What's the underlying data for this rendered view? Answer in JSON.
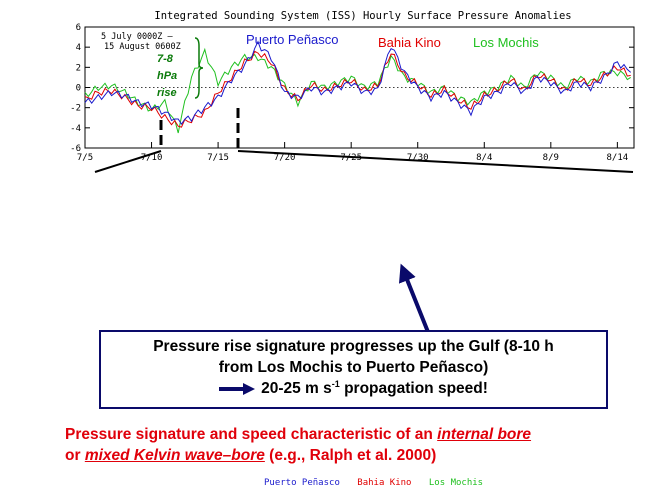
{
  "chart_data": {
    "type": "line",
    "title": "Integrated Sounding System (ISS) Hourly Surface Pressure Anomalies",
    "annotation": "5 July 0000Z – 15 August 0600Z",
    "rise_label_lines": [
      "7-8",
      "hPa",
      "rise"
    ],
    "xlabel": "",
    "ylabel": "",
    "x_ticks": [
      "7/5",
      "7/10",
      "7/15",
      "7/20",
      "7/25",
      "7/30",
      "8/4",
      "8/9",
      "8/14"
    ],
    "y_ticks": [
      "6",
      "4",
      "2",
      "0",
      "-2",
      "-4",
      "-6"
    ],
    "xlim": [
      0,
      41.25
    ],
    "ylim": [
      -6,
      6
    ],
    "grid": false,
    "legend_position": "top",
    "series": [
      {
        "name": "Puerto Peñasco",
        "color": "#1a1acc",
        "x": [
          0,
          1,
          2,
          3,
          4,
          5,
          6,
          7,
          8,
          9,
          10,
          11,
          12,
          13,
          14,
          15,
          16,
          17,
          18,
          19,
          20,
          21,
          22,
          23,
          24,
          25,
          26,
          27,
          28,
          29,
          30,
          31,
          32,
          33,
          34,
          35,
          36,
          37,
          38,
          39,
          40,
          41
        ],
        "values": [
          -1.5,
          -1,
          -0.5,
          -0.8,
          -1.5,
          -1.8,
          -2.5,
          -3.4,
          -3,
          -2,
          -1,
          0.8,
          2.2,
          4.3,
          3,
          -0.5,
          -1,
          0,
          -0.5,
          0,
          0.5,
          -0.5,
          -0.2,
          4.2,
          1.5,
          0,
          -1,
          -0.5,
          -1.5,
          -2.4,
          -1,
          -0.5,
          0.5,
          -0.5,
          1,
          0.5,
          -0.5,
          0.5,
          0,
          1,
          2.5,
          1.5
        ]
      },
      {
        "name": "Bahia Kino",
        "color": "#e00000",
        "x": [
          0,
          1,
          2,
          3,
          4,
          5,
          6,
          7,
          8,
          9,
          10,
          11,
          12,
          13,
          14,
          15,
          16,
          17,
          18,
          19,
          20,
          21,
          22,
          23,
          24,
          25,
          26,
          27,
          28,
          29,
          30,
          31,
          32,
          33,
          34,
          35,
          36,
          37,
          38,
          39,
          40,
          41
        ],
        "values": [
          -1.2,
          -0.5,
          -0.3,
          -1,
          -1.8,
          -2,
          -3,
          -3.8,
          -3.2,
          -2.5,
          -0.5,
          1,
          2.5,
          3.5,
          2.5,
          -0.2,
          -1.2,
          0.3,
          -0.3,
          0.2,
          0.7,
          -0.3,
          0.2,
          3.5,
          1.2,
          0.3,
          -0.8,
          -0.2,
          -1.2,
          -2,
          -0.8,
          -0.2,
          0.8,
          -0.3,
          1.2,
          0.8,
          -0.3,
          0.8,
          0.3,
          1.2,
          2,
          1.2
        ]
      },
      {
        "name": "Los Mochis",
        "color": "#20c020",
        "x": [
          0,
          1,
          2,
          3,
          4,
          5,
          6,
          7,
          8,
          9,
          10,
          11,
          12,
          13,
          14,
          15,
          16,
          17,
          18,
          19,
          20,
          21,
          22,
          23,
          24,
          25,
          26,
          27,
          28,
          29,
          30,
          31,
          32,
          33,
          34,
          35,
          36,
          37,
          38,
          39,
          40,
          41
        ],
        "values": [
          -0.8,
          0,
          0.2,
          -0.5,
          -1.5,
          -2.2,
          -1.5,
          -4.2,
          1,
          3.5,
          0.5,
          2,
          3,
          3,
          2,
          0.2,
          -1.5,
          0.5,
          0,
          0.5,
          1,
          0,
          0.5,
          3,
          1,
          0.5,
          -0.5,
          0,
          -1,
          -1.5,
          -0.5,
          0,
          1,
          0,
          1.5,
          1,
          0,
          1,
          0.5,
          1.5,
          1.5,
          1
        ]
      }
    ]
  },
  "callout": {
    "line1": "Pressure rise signature progresses up the Gulf (8-10 h",
    "line2": "from Los Mochis to Puerto Peñasco)",
    "speed_value": "20-25 m s",
    "speed_exp": "-1",
    "speed_rest": " propagation speed!"
  },
  "conclusion": {
    "part1": "Pressure signature and speed characteristic of an ",
    "term1": "internal bore",
    "part2": "or ",
    "term2": "mixed Kelvin wave–bore",
    "part3": " (e.g., Ralph et al. 2000)"
  },
  "colors": {
    "arrow": "#0a0a6a",
    "box_border": "#0a0a6a",
    "conclusion_text": "#e0000a"
  }
}
